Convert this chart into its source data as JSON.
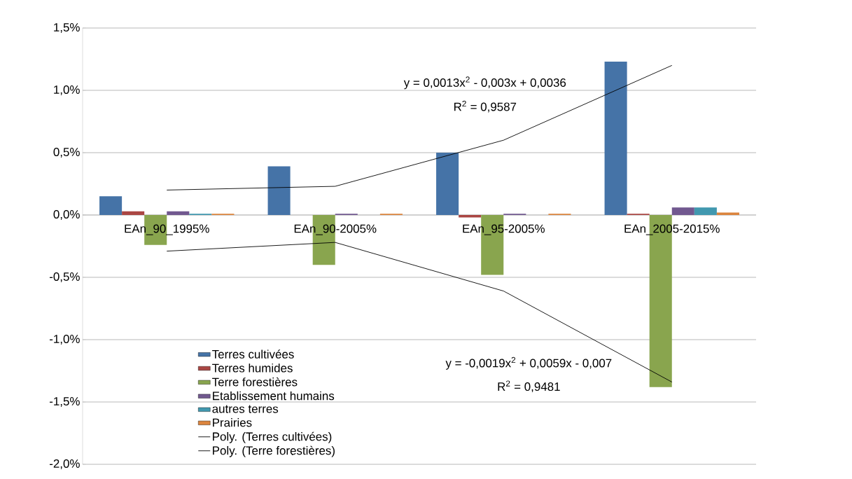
{
  "chart_data": {
    "type": "bar",
    "categories": [
      "EAn_90_1995%",
      "EAn_90-2005%",
      "EAn_95-2005%",
      "EAn_2005-2015%"
    ],
    "ylim": [
      -2.0,
      1.5
    ],
    "yticks": [
      {
        "value": -2.0,
        "label": "-2,0%"
      },
      {
        "value": -1.5,
        "label": "-1,5%"
      },
      {
        "value": -1.0,
        "label": "-1,0%"
      },
      {
        "value": -0.5,
        "label": "-0,5%"
      },
      {
        "value": 0.0,
        "label": "0,0%"
      },
      {
        "value": 0.5,
        "label": "0,5%"
      },
      {
        "value": 1.0,
        "label": "1,0%"
      },
      {
        "value": 1.5,
        "label": "1,5%"
      }
    ],
    "grid": "y",
    "legend": "bottom left",
    "series": [
      {
        "name": "Terres cultivées",
        "color": "#4573a7",
        "values": [
          0.15,
          0.39,
          0.5,
          1.23
        ]
      },
      {
        "name": "Terres humides",
        "color": "#aa4643",
        "values": [
          0.03,
          0.0,
          -0.02,
          0.01
        ]
      },
      {
        "name": "Terre forestières",
        "color": "#89a54e",
        "values": [
          -0.24,
          -0.4,
          -0.48,
          -1.38
        ]
      },
      {
        "name": "Etablissement humains",
        "color": "#71588f",
        "values": [
          0.03,
          0.01,
          0.01,
          0.06
        ]
      },
      {
        "name": "autres terres",
        "color": "#4198af",
        "values": [
          0.01,
          0.0,
          0.0,
          0.06
        ]
      },
      {
        "name": "Prairies",
        "color": "#db843d",
        "values": [
          0.01,
          0.01,
          0.01,
          0.02
        ]
      },
      {
        "name": "Poly. (Terres cultivées)",
        "type": "line",
        "color": "#000000",
        "x": [
          "EAn_90_1995%",
          "EAn_90-2005%",
          "EAn_95-2005%",
          "EAn_2005-2015%"
        ],
        "values": [
          0.2,
          0.23,
          0.6,
          1.2
        ]
      },
      {
        "name": "Poly. (Terre forestières)",
        "type": "line",
        "color": "#000000",
        "x": [
          "EAn_90_1995%",
          "EAn_90-2005%",
          "EAn_95-2005%",
          "EAn_2005-2015%"
        ],
        "values": [
          -0.29,
          -0.22,
          -0.61,
          -1.34
        ]
      }
    ],
    "annotations": [
      "y = 0,0013x$^{2}$ - 0,003x + 0,0036",
      "R$^{2}$ = 0,9587",
      "y = -0,0019x$^{2}$ + 0,0059x - 0,007",
      "R$^{2}$ = 0,9481"
    ]
  }
}
